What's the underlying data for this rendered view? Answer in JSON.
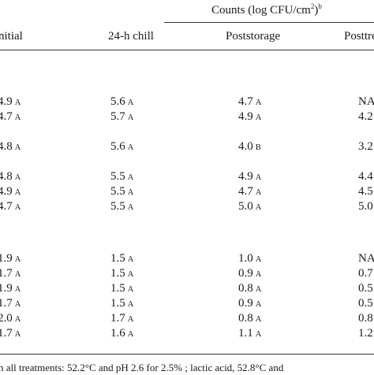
{
  "header": {
    "group_label": "Counts (log CFU/cm",
    "group_sup_a": "2",
    "group_close": ")",
    "group_sup_b": "b",
    "columns": [
      "nitial",
      "24-h chill",
      "Poststorage",
      "Posttre"
    ]
  },
  "rows": [
    {
      "c1": "4.9",
      "g1": "A",
      "c2": "5.6",
      "g2": "A",
      "c3": "4.7",
      "g3": "A",
      "c4": "NA"
    },
    {
      "c1": "4.7",
      "g1": "A",
      "c2": "5.7",
      "g2": "A",
      "c3": "4.9",
      "g3": "A",
      "c4": "4.2"
    },
    {
      "c1": "4.8",
      "g1": "A",
      "c2": "5.6",
      "g2": "A",
      "c3": "4.0",
      "g3": "B",
      "c4": "3.2"
    },
    {
      "c1": "4.8",
      "g1": "A",
      "c2": "5.5",
      "g2": "A",
      "c3": "4.9",
      "g3": "A",
      "c4": "4.4"
    },
    {
      "c1": "4.9",
      "g1": "A",
      "c2": "5.5",
      "g2": "A",
      "c3": "4.7",
      "g3": "A",
      "c4": "4.5"
    },
    {
      "c1": "4.7",
      "g1": "A",
      "c2": "5.5",
      "g2": "A",
      "c3": "5.0",
      "g3": "A",
      "c4": "5.0"
    },
    {
      "c1": "1.9",
      "g1": "A",
      "c2": "1.5",
      "g2": "A",
      "c3": "1.0",
      "g3": "A",
      "c4": "NA"
    },
    {
      "c1": "1.7",
      "g1": "A",
      "c2": "1.5",
      "g2": "A",
      "c3": "0.9",
      "g3": "A",
      "c4": "0.7"
    },
    {
      "c1": "1.9",
      "g1": "A",
      "c2": "1.5",
      "g2": "A",
      "c3": "0.8",
      "g3": "A",
      "c4": "0.5"
    },
    {
      "c1": "1.7",
      "g1": "A",
      "c2": "1.5",
      "g2": "A",
      "c3": "0.9",
      "g3": "A",
      "c4": "0.5"
    },
    {
      "c1": "2.0",
      "g1": "A",
      "c2": "1.7",
      "g2": "A",
      "c3": "0.8",
      "g3": "A",
      "c4": "0.8"
    },
    {
      "c1": "1.7",
      "g1": "A",
      "c2": "1.6",
      "g2": "A",
      "c3": "1.1",
      "g3": "A",
      "c4": "1.2"
    }
  ],
  "footnote": "n all treatments: 52.2°C and pH 2.6 for 2.5% ; lactic acid, 52.8°C and"
}
